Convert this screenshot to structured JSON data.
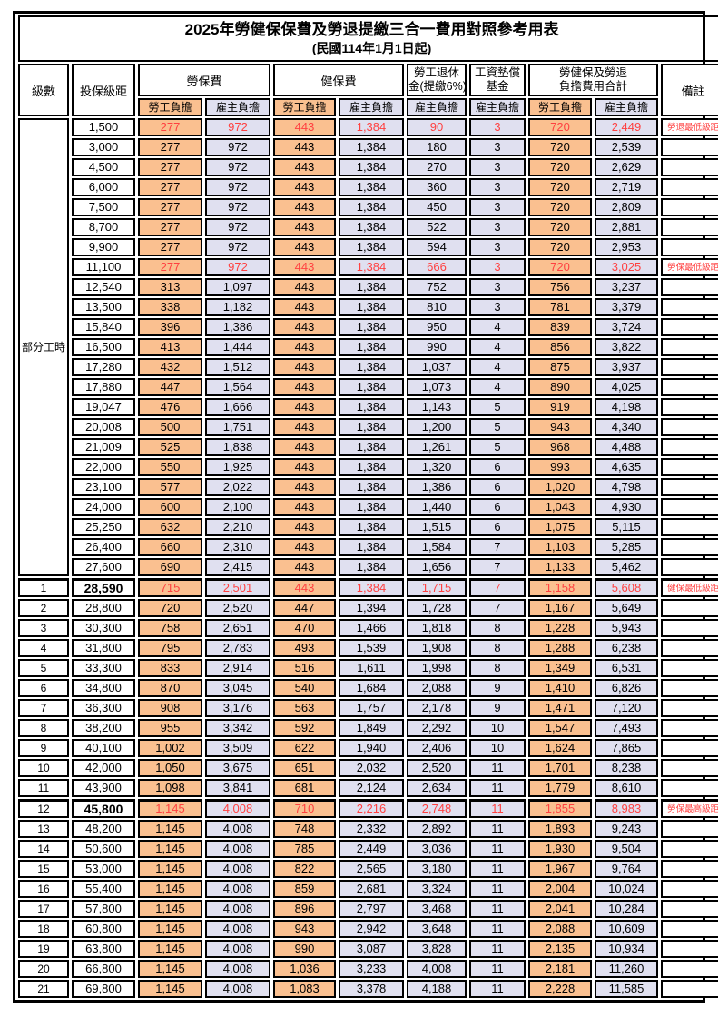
{
  "title": "2025年勞健保保費及勞退提繳三合一費用對照參考用表",
  "subtitle": "(民國114年1月1日起)",
  "colors": {
    "employee_col_bg": "#FAC090",
    "employer_col_bg": "#E0E0F0",
    "highlight_text": "#FF4040",
    "border": "#000000"
  },
  "table": {
    "headers": {
      "level": "級數",
      "salary": "投保級距",
      "labor": "勞保費",
      "health": "健保費",
      "pension_line1": "勞工退休",
      "pension_line2": "金(提繳6%)",
      "wage_fund_line1": "工資墊償",
      "wage_fund_line2": "基金",
      "total_line1": "勞健保及勞退",
      "total_line2": "負擔費用合計",
      "note": "備註",
      "employee": "勞工負擔",
      "employer": "雇主負擔"
    },
    "part_time_label": "部分工時",
    "rows": [
      {
        "level": "",
        "salary": "1,500",
        "labor_emp": "277",
        "labor_er": "972",
        "health_emp": "443",
        "health_er": "1,384",
        "pension_er": "90",
        "fund_er": "3",
        "total_emp": "720",
        "total_er": "2,449",
        "note": "勞退最低級距",
        "highlight": true,
        "key": false
      },
      {
        "level": "",
        "salary": "3,000",
        "labor_emp": "277",
        "labor_er": "972",
        "health_emp": "443",
        "health_er": "1,384",
        "pension_er": "180",
        "fund_er": "3",
        "total_emp": "720",
        "total_er": "2,539",
        "note": "",
        "highlight": false,
        "key": false
      },
      {
        "level": "",
        "salary": "4,500",
        "labor_emp": "277",
        "labor_er": "972",
        "health_emp": "443",
        "health_er": "1,384",
        "pension_er": "270",
        "fund_er": "3",
        "total_emp": "720",
        "total_er": "2,629",
        "note": "",
        "highlight": false,
        "key": false
      },
      {
        "level": "",
        "salary": "6,000",
        "labor_emp": "277",
        "labor_er": "972",
        "health_emp": "443",
        "health_er": "1,384",
        "pension_er": "360",
        "fund_er": "3",
        "total_emp": "720",
        "total_er": "2,719",
        "note": "",
        "highlight": false,
        "key": false
      },
      {
        "level": "",
        "salary": "7,500",
        "labor_emp": "277",
        "labor_er": "972",
        "health_emp": "443",
        "health_er": "1,384",
        "pension_er": "450",
        "fund_er": "3",
        "total_emp": "720",
        "total_er": "2,809",
        "note": "",
        "highlight": false,
        "key": false
      },
      {
        "level": "",
        "salary": "8,700",
        "labor_emp": "277",
        "labor_er": "972",
        "health_emp": "443",
        "health_er": "1,384",
        "pension_er": "522",
        "fund_er": "3",
        "total_emp": "720",
        "total_er": "2,881",
        "note": "",
        "highlight": false,
        "key": false
      },
      {
        "level": "",
        "salary": "9,900",
        "labor_emp": "277",
        "labor_er": "972",
        "health_emp": "443",
        "health_er": "1,384",
        "pension_er": "594",
        "fund_er": "3",
        "total_emp": "720",
        "total_er": "2,953",
        "note": "",
        "highlight": false,
        "key": false
      },
      {
        "level": "",
        "salary": "11,100",
        "labor_emp": "277",
        "labor_er": "972",
        "health_emp": "443",
        "health_er": "1,384",
        "pension_er": "666",
        "fund_er": "3",
        "total_emp": "720",
        "total_er": "3,025",
        "note": "勞保最低級距",
        "highlight": true,
        "key": false
      },
      {
        "level": "",
        "salary": "12,540",
        "labor_emp": "313",
        "labor_er": "1,097",
        "health_emp": "443",
        "health_er": "1,384",
        "pension_er": "752",
        "fund_er": "3",
        "total_emp": "756",
        "total_er": "3,237",
        "note": "",
        "highlight": false,
        "key": false
      },
      {
        "level": "",
        "salary": "13,500",
        "labor_emp": "338",
        "labor_er": "1,182",
        "health_emp": "443",
        "health_er": "1,384",
        "pension_er": "810",
        "fund_er": "3",
        "total_emp": "781",
        "total_er": "3,379",
        "note": "",
        "highlight": false,
        "key": false
      },
      {
        "level": "",
        "salary": "15,840",
        "labor_emp": "396",
        "labor_er": "1,386",
        "health_emp": "443",
        "health_er": "1,384",
        "pension_er": "950",
        "fund_er": "4",
        "total_emp": "839",
        "total_er": "3,724",
        "note": "",
        "highlight": false,
        "key": false
      },
      {
        "level": "",
        "salary": "16,500",
        "labor_emp": "413",
        "labor_er": "1,444",
        "health_emp": "443",
        "health_er": "1,384",
        "pension_er": "990",
        "fund_er": "4",
        "total_emp": "856",
        "total_er": "3,822",
        "note": "",
        "highlight": false,
        "key": false
      },
      {
        "level": "",
        "salary": "17,280",
        "labor_emp": "432",
        "labor_er": "1,512",
        "health_emp": "443",
        "health_er": "1,384",
        "pension_er": "1,037",
        "fund_er": "4",
        "total_emp": "875",
        "total_er": "3,937",
        "note": "",
        "highlight": false,
        "key": false
      },
      {
        "level": "",
        "salary": "17,880",
        "labor_emp": "447",
        "labor_er": "1,564",
        "health_emp": "443",
        "health_er": "1,384",
        "pension_er": "1,073",
        "fund_er": "4",
        "total_emp": "890",
        "total_er": "4,025",
        "note": "",
        "highlight": false,
        "key": false
      },
      {
        "level": "",
        "salary": "19,047",
        "labor_emp": "476",
        "labor_er": "1,666",
        "health_emp": "443",
        "health_er": "1,384",
        "pension_er": "1,143",
        "fund_er": "5",
        "total_emp": "919",
        "total_er": "4,198",
        "note": "",
        "highlight": false,
        "key": false
      },
      {
        "level": "",
        "salary": "20,008",
        "labor_emp": "500",
        "labor_er": "1,751",
        "health_emp": "443",
        "health_er": "1,384",
        "pension_er": "1,200",
        "fund_er": "5",
        "total_emp": "943",
        "total_er": "4,340",
        "note": "",
        "highlight": false,
        "key": false
      },
      {
        "level": "",
        "salary": "21,009",
        "labor_emp": "525",
        "labor_er": "1,838",
        "health_emp": "443",
        "health_er": "1,384",
        "pension_er": "1,261",
        "fund_er": "5",
        "total_emp": "968",
        "total_er": "4,488",
        "note": "",
        "highlight": false,
        "key": false
      },
      {
        "level": "",
        "salary": "22,000",
        "labor_emp": "550",
        "labor_er": "1,925",
        "health_emp": "443",
        "health_er": "1,384",
        "pension_er": "1,320",
        "fund_er": "6",
        "total_emp": "993",
        "total_er": "4,635",
        "note": "",
        "highlight": false,
        "key": false
      },
      {
        "level": "",
        "salary": "23,100",
        "labor_emp": "577",
        "labor_er": "2,022",
        "health_emp": "443",
        "health_er": "1,384",
        "pension_er": "1,386",
        "fund_er": "6",
        "total_emp": "1,020",
        "total_er": "4,798",
        "note": "",
        "highlight": false,
        "key": false
      },
      {
        "level": "",
        "salary": "24,000",
        "labor_emp": "600",
        "labor_er": "2,100",
        "health_emp": "443",
        "health_er": "1,384",
        "pension_er": "1,440",
        "fund_er": "6",
        "total_emp": "1,043",
        "total_er": "4,930",
        "note": "",
        "highlight": false,
        "key": false
      },
      {
        "level": "",
        "salary": "25,250",
        "labor_emp": "632",
        "labor_er": "2,210",
        "health_emp": "443",
        "health_er": "1,384",
        "pension_er": "1,515",
        "fund_er": "6",
        "total_emp": "1,075",
        "total_er": "5,115",
        "note": "",
        "highlight": false,
        "key": false
      },
      {
        "level": "",
        "salary": "26,400",
        "labor_emp": "660",
        "labor_er": "2,310",
        "health_emp": "443",
        "health_er": "1,384",
        "pension_er": "1,584",
        "fund_er": "7",
        "total_emp": "1,103",
        "total_er": "5,285",
        "note": "",
        "highlight": false,
        "key": false
      },
      {
        "level": "",
        "salary": "27,600",
        "labor_emp": "690",
        "labor_er": "2,415",
        "health_emp": "443",
        "health_er": "1,384",
        "pension_er": "1,656",
        "fund_er": "7",
        "total_emp": "1,133",
        "total_er": "5,462",
        "note": "",
        "highlight": false,
        "key": false
      },
      {
        "level": "1",
        "salary": "28,590",
        "labor_emp": "715",
        "labor_er": "2,501",
        "health_emp": "443",
        "health_er": "1,384",
        "pension_er": "1,715",
        "fund_er": "7",
        "total_emp": "1,158",
        "total_er": "5,608",
        "note": "健保最低級距",
        "highlight": true,
        "key": true
      },
      {
        "level": "2",
        "salary": "28,800",
        "labor_emp": "720",
        "labor_er": "2,520",
        "health_emp": "447",
        "health_er": "1,394",
        "pension_er": "1,728",
        "fund_er": "7",
        "total_emp": "1,167",
        "total_er": "5,649",
        "note": "",
        "highlight": false,
        "key": false
      },
      {
        "level": "3",
        "salary": "30,300",
        "labor_emp": "758",
        "labor_er": "2,651",
        "health_emp": "470",
        "health_er": "1,466",
        "pension_er": "1,818",
        "fund_er": "8",
        "total_emp": "1,228",
        "total_er": "5,943",
        "note": "",
        "highlight": false,
        "key": false
      },
      {
        "level": "4",
        "salary": "31,800",
        "labor_emp": "795",
        "labor_er": "2,783",
        "health_emp": "493",
        "health_er": "1,539",
        "pension_er": "1,908",
        "fund_er": "8",
        "total_emp": "1,288",
        "total_er": "6,238",
        "note": "",
        "highlight": false,
        "key": false
      },
      {
        "level": "5",
        "salary": "33,300",
        "labor_emp": "833",
        "labor_er": "2,914",
        "health_emp": "516",
        "health_er": "1,611",
        "pension_er": "1,998",
        "fund_er": "8",
        "total_emp": "1,349",
        "total_er": "6,531",
        "note": "",
        "highlight": false,
        "key": false
      },
      {
        "level": "6",
        "salary": "34,800",
        "labor_emp": "870",
        "labor_er": "3,045",
        "health_emp": "540",
        "health_er": "1,684",
        "pension_er": "2,088",
        "fund_er": "9",
        "total_emp": "1,410",
        "total_er": "6,826",
        "note": "",
        "highlight": false,
        "key": false
      },
      {
        "level": "7",
        "salary": "36,300",
        "labor_emp": "908",
        "labor_er": "3,176",
        "health_emp": "563",
        "health_er": "1,757",
        "pension_er": "2,178",
        "fund_er": "9",
        "total_emp": "1,471",
        "total_er": "7,120",
        "note": "",
        "highlight": false,
        "key": false
      },
      {
        "level": "8",
        "salary": "38,200",
        "labor_emp": "955",
        "labor_er": "3,342",
        "health_emp": "592",
        "health_er": "1,849",
        "pension_er": "2,292",
        "fund_er": "10",
        "total_emp": "1,547",
        "total_er": "7,493",
        "note": "",
        "highlight": false,
        "key": false
      },
      {
        "level": "9",
        "salary": "40,100",
        "labor_emp": "1,002",
        "labor_er": "3,509",
        "health_emp": "622",
        "health_er": "1,940",
        "pension_er": "2,406",
        "fund_er": "10",
        "total_emp": "1,624",
        "total_er": "7,865",
        "note": "",
        "highlight": false,
        "key": false
      },
      {
        "level": "10",
        "salary": "42,000",
        "labor_emp": "1,050",
        "labor_er": "3,675",
        "health_emp": "651",
        "health_er": "2,032",
        "pension_er": "2,520",
        "fund_er": "11",
        "total_emp": "1,701",
        "total_er": "8,238",
        "note": "",
        "highlight": false,
        "key": false
      },
      {
        "level": "11",
        "salary": "43,900",
        "labor_emp": "1,098",
        "labor_er": "3,841",
        "health_emp": "681",
        "health_er": "2,124",
        "pension_er": "2,634",
        "fund_er": "11",
        "total_emp": "1,779",
        "total_er": "8,610",
        "note": "",
        "highlight": false,
        "key": false
      },
      {
        "level": "12",
        "salary": "45,800",
        "labor_emp": "1,145",
        "labor_er": "4,008",
        "health_emp": "710",
        "health_er": "2,216",
        "pension_er": "2,748",
        "fund_er": "11",
        "total_emp": "1,855",
        "total_er": "8,983",
        "note": "勞保最高級距",
        "highlight": true,
        "key": true
      },
      {
        "level": "13",
        "salary": "48,200",
        "labor_emp": "1,145",
        "labor_er": "4,008",
        "health_emp": "748",
        "health_er": "2,332",
        "pension_er": "2,892",
        "fund_er": "11",
        "total_emp": "1,893",
        "total_er": "9,243",
        "note": "",
        "highlight": false,
        "key": false
      },
      {
        "level": "14",
        "salary": "50,600",
        "labor_emp": "1,145",
        "labor_er": "4,008",
        "health_emp": "785",
        "health_er": "2,449",
        "pension_er": "3,036",
        "fund_er": "11",
        "total_emp": "1,930",
        "total_er": "9,504",
        "note": "",
        "highlight": false,
        "key": false
      },
      {
        "level": "15",
        "salary": "53,000",
        "labor_emp": "1,145",
        "labor_er": "4,008",
        "health_emp": "822",
        "health_er": "2,565",
        "pension_er": "3,180",
        "fund_er": "11",
        "total_emp": "1,967",
        "total_er": "9,764",
        "note": "",
        "highlight": false,
        "key": false
      },
      {
        "level": "16",
        "salary": "55,400",
        "labor_emp": "1,145",
        "labor_er": "4,008",
        "health_emp": "859",
        "health_er": "2,681",
        "pension_er": "3,324",
        "fund_er": "11",
        "total_emp": "2,004",
        "total_er": "10,024",
        "note": "",
        "highlight": false,
        "key": false
      },
      {
        "level": "17",
        "salary": "57,800",
        "labor_emp": "1,145",
        "labor_er": "4,008",
        "health_emp": "896",
        "health_er": "2,797",
        "pension_er": "3,468",
        "fund_er": "11",
        "total_emp": "2,041",
        "total_er": "10,284",
        "note": "",
        "highlight": false,
        "key": false
      },
      {
        "level": "18",
        "salary": "60,800",
        "labor_emp": "1,145",
        "labor_er": "4,008",
        "health_emp": "943",
        "health_er": "2,942",
        "pension_er": "3,648",
        "fund_er": "11",
        "total_emp": "2,088",
        "total_er": "10,609",
        "note": "",
        "highlight": false,
        "key": false
      },
      {
        "level": "19",
        "salary": "63,800",
        "labor_emp": "1,145",
        "labor_er": "4,008",
        "health_emp": "990",
        "health_er": "3,087",
        "pension_er": "3,828",
        "fund_er": "11",
        "total_emp": "2,135",
        "total_er": "10,934",
        "note": "",
        "highlight": false,
        "key": false
      },
      {
        "level": "20",
        "salary": "66,800",
        "labor_emp": "1,145",
        "labor_er": "4,008",
        "health_emp": "1,036",
        "health_er": "3,233",
        "pension_er": "4,008",
        "fund_er": "11",
        "total_emp": "2,181",
        "total_er": "11,260",
        "note": "",
        "highlight": false,
        "key": false
      },
      {
        "level": "21",
        "salary": "69,800",
        "labor_emp": "1,145",
        "labor_er": "4,008",
        "health_emp": "1,083",
        "health_er": "3,378",
        "pension_er": "4,188",
        "fund_er": "11",
        "total_emp": "2,228",
        "total_er": "11,585",
        "note": "",
        "highlight": false,
        "key": false
      }
    ]
  }
}
